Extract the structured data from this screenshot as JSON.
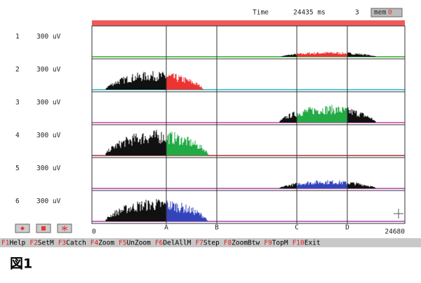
{
  "header": {
    "time_label": "Time",
    "time_value": "24435 ms",
    "marker": "3",
    "mem_label": "mem",
    "mem_value": "0"
  },
  "channels": [
    {
      "number": "1",
      "gain": "300 uV"
    },
    {
      "number": "2",
      "gain": "300 uV"
    },
    {
      "number": "3",
      "gain": "300 uV"
    },
    {
      "number": "4",
      "gain": "300 uV"
    },
    {
      "number": "5",
      "gain": "300 uV"
    },
    {
      "number": "6",
      "gain": "300 uV"
    }
  ],
  "axis_labels": {
    "start": "0",
    "a": "A",
    "b": "B",
    "c": "C",
    "d": "D",
    "end": "24680"
  },
  "function_keys": [
    {
      "key": "F1",
      "label": "Help"
    },
    {
      "key": "F2",
      "label": "SetM"
    },
    {
      "key": "F3",
      "label": "Catch"
    },
    {
      "key": "F4",
      "label": "Zoom"
    },
    {
      "key": "F5",
      "label": "UnZoom"
    },
    {
      "key": "F6",
      "label": "DelAllM"
    },
    {
      "key": "F7",
      "label": "Step"
    },
    {
      "key": "F8",
      "label": "ZoomBtw"
    },
    {
      "key": "F9",
      "label": "TopM"
    },
    {
      "key": "F10",
      "label": "Exit"
    }
  ],
  "caption": "図1"
}
